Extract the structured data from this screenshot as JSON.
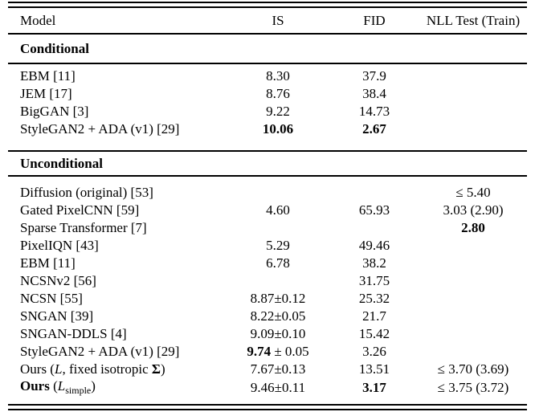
{
  "table": {
    "header": {
      "model": "Model",
      "is": "IS",
      "fid": "FID",
      "nll": "NLL Test (Train)"
    },
    "sections": [
      {
        "title": "Conditional",
        "rows": [
          {
            "model": "EBM [11]",
            "is": "8.30",
            "fid": "37.9",
            "nll": ""
          },
          {
            "model": "JEM [17]",
            "is": "8.76",
            "fid": "38.4",
            "nll": ""
          },
          {
            "model": "BigGAN [3]",
            "is": "9.22",
            "fid": "14.73",
            "nll": ""
          },
          {
            "model": "StyleGAN2 + ADA (v1) [29]",
            "is": "10.06",
            "fid": "2.67",
            "nll": ""
          }
        ]
      },
      {
        "title": "Unconditional",
        "rows": [
          {
            "model": "Diffusion (original) [53]",
            "is": "",
            "fid": "",
            "nll": "≤ 5.40"
          },
          {
            "model": "Gated PixelCNN [59]",
            "is": "4.60",
            "fid": "65.93",
            "nll": "3.03 (2.90)"
          },
          {
            "model": "Sparse Transformer [7]",
            "is": "",
            "fid": "",
            "nll": "2.80"
          },
          {
            "model": "PixelIQN [43]",
            "is": "5.29",
            "fid": "49.46",
            "nll": ""
          },
          {
            "model": "EBM [11]",
            "is": "6.78",
            "fid": "38.2",
            "nll": ""
          },
          {
            "model": "NCSNv2 [56]",
            "is": "",
            "fid": "31.75",
            "nll": ""
          },
          {
            "model": "NCSN [55]",
            "is": "8.87±0.12",
            "fid": "25.32",
            "nll": ""
          },
          {
            "model": "SNGAN [39]",
            "is": "8.22±0.05",
            "fid": "21.7",
            "nll": ""
          },
          {
            "model": "SNGAN-DDLS [4]",
            "is": "9.09±0.10",
            "fid": "15.42",
            "nll": ""
          },
          {
            "model": "StyleGAN2 + ADA (v1) [29]",
            "is_bold": "9.74",
            "is_rest": " ± 0.05",
            "fid": "3.26",
            "nll": ""
          },
          {
            "model_parts": {
              "pre": "Ours (",
              "var": "L",
              "mid": ", fixed isotropic ",
              "sigma": "Σ",
              "post": ")"
            },
            "is": "7.67±0.13",
            "fid": "13.51",
            "nll": "≤ 3.70 (3.69)"
          },
          {
            "model_parts": {
              "bold": "Ours",
              "pre": " (",
              "var": "L",
              "sub": "simple",
              "post": ")"
            },
            "is": "9.46±0.11",
            "fid": "3.17",
            "nll": "≤ 3.75 (3.72)"
          }
        ]
      }
    ]
  }
}
